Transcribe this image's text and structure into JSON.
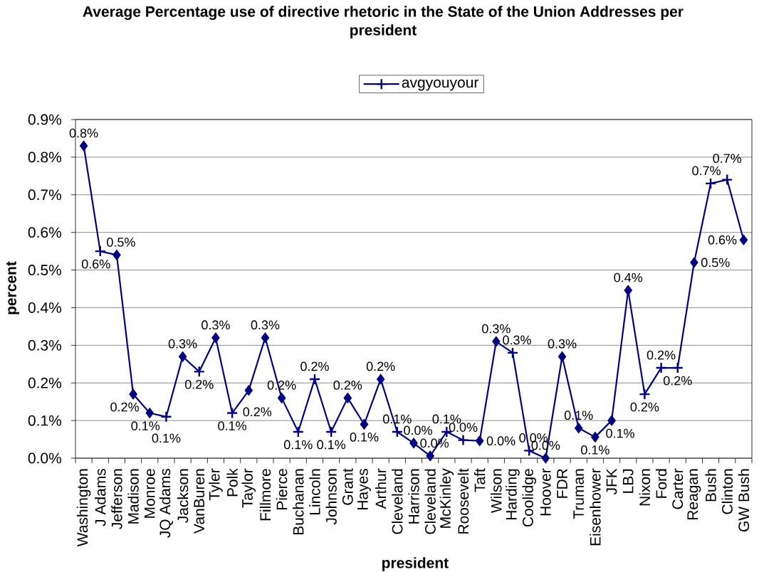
{
  "chart_data": {
    "type": "line",
    "title": "Average Percentage use of directive rhetoric in the State of the Union Addresses per president",
    "xlabel": "president",
    "ylabel": "percent",
    "categories": [
      "Washington",
      "J Adams",
      "Jefferson",
      "Madison",
      "Monroe",
      "JQ Adams",
      "Jackson",
      "VanBuren",
      "Tyler",
      "Polk",
      "Taylor",
      "Fillmore",
      "Pierce",
      "Buchanan",
      "Lincoln",
      "Johnson",
      "Grant",
      "Hayes",
      "Arthur",
      "Cleveland",
      "Harrison",
      "Cleveland",
      "McKinley",
      "Roosevelt",
      "Taft",
      "Wilson",
      "Harding",
      "Coolidge",
      "Hoover",
      "FDR",
      "Truman",
      "Eisenhower",
      "JFK",
      "LBJ",
      "Nixon",
      "Ford",
      "Carter",
      "Reagan",
      "Bush",
      "Clinton",
      "GW Bush"
    ],
    "series": [
      {
        "name": "avgyouyour",
        "color": "#000080",
        "values": [
          0.83,
          0.55,
          0.54,
          0.17,
          0.12,
          0.11,
          0.27,
          0.23,
          0.32,
          0.12,
          0.18,
          0.32,
          0.16,
          0.07,
          0.21,
          0.07,
          0.16,
          0.09,
          0.21,
          0.07,
          0.04,
          0.006,
          0.07,
          0.048,
          0.046,
          0.31,
          0.28,
          0.02,
          0,
          0.27,
          0.08,
          0.056,
          0.1,
          0.446,
          0.17,
          0.24,
          0.24,
          0.52,
          0.73,
          0.74,
          0.58
        ],
        "value_labels": [
          "0.8%",
          "0.6%",
          "0.5%",
          "0.2%",
          "0.1%",
          "0.1%",
          "0.3%",
          "0.2%",
          "0.3%",
          "0.1%",
          "0.2%",
          "0.3%",
          "0.2%",
          "0.1%",
          "0.2%",
          "0.1%",
          "0.2%",
          "0.1%",
          "0.2%",
          "0.1%",
          "0.0%",
          "0.0%",
          "0.1%",
          "0.0%",
          "0.0%",
          "0.3%",
          "0.3%",
          "0.0%",
          "0.0%",
          "0.3%",
          "0.1%",
          "0.1%",
          "0.1%",
          "0.4%",
          "0.2%",
          "0.2%",
          "0.2%",
          "0.5%",
          "0.7%",
          "0.7%",
          "0.6%"
        ],
        "marker": [
          "diamond",
          "cross",
          "diamond",
          "diamond",
          "diamond",
          "cross",
          "diamond",
          "cross",
          "diamond",
          "cross",
          "diamond",
          "diamond",
          "diamond",
          "cross",
          "cross",
          "cross",
          "diamond",
          "diamond",
          "diamond",
          "cross",
          "diamond",
          "diamond",
          "cross",
          "cross",
          "diamond",
          "diamond",
          "cross",
          "cross",
          "diamond",
          "diamond",
          "diamond",
          "diamond",
          "diamond",
          "diamond",
          "cross",
          "cross",
          "cross",
          "diamond",
          "cross",
          "cross",
          "diamond"
        ]
      }
    ],
    "ylim": [
      0,
      0.9
    ],
    "yticks": [
      {
        "value": 0,
        "label": "0.0%"
      },
      {
        "value": 0.1,
        "label": "0.1%"
      },
      {
        "value": 0.2,
        "label": "0.2%"
      },
      {
        "value": 0.3,
        "label": "0.3%"
      },
      {
        "value": 0.4,
        "label": "0.4%"
      },
      {
        "value": 0.5,
        "label": "0.5%"
      },
      {
        "value": 0.6,
        "label": "0.6%"
      },
      {
        "value": 0.7,
        "label": "0.7%"
      },
      {
        "value": 0.8,
        "label": "0.8%"
      },
      {
        "value": 0.9,
        "label": "0.9%"
      }
    ],
    "grid": "y",
    "legend": "top"
  }
}
